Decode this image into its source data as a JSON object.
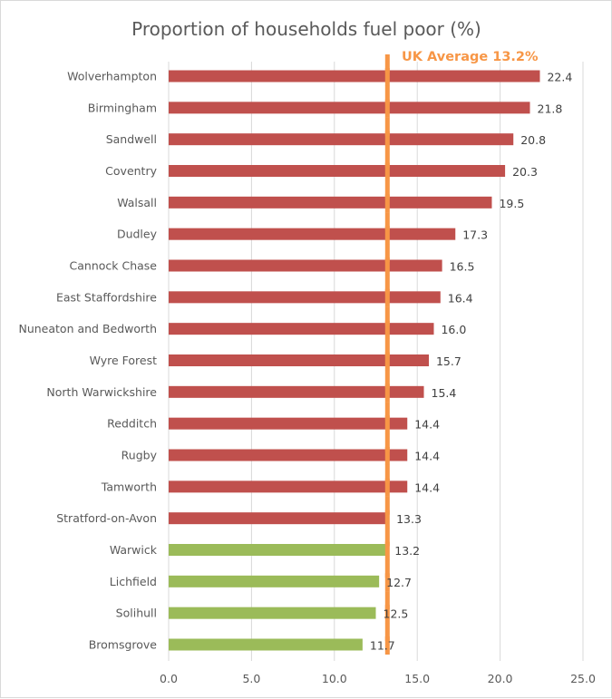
{
  "chart_data": {
    "type": "bar",
    "orientation": "horizontal",
    "title": "Proportion of households fuel poor (%)",
    "xlabel": "",
    "ylabel": "",
    "xlim": [
      0,
      25
    ],
    "xticks": [
      0,
      5,
      10,
      15,
      20,
      25
    ],
    "xtick_labels": [
      "0.0",
      "5.0",
      "10.0",
      "15.0",
      "20.0",
      "25.0"
    ],
    "grid": true,
    "legend": "none",
    "categories": [
      "Wolverhampton",
      "Birmingham",
      "Sandwell",
      "Coventry",
      "Walsall",
      "Dudley",
      "Cannock Chase",
      "East Staffordshire",
      "Nuneaton and Bedworth",
      "Wyre Forest",
      "North Warwickshire",
      "Redditch",
      "Rugby",
      "Tamworth",
      "Stratford-on-Avon",
      "Warwick",
      "Lichfield",
      "Solihull",
      "Bromsgrove"
    ],
    "values": [
      22.4,
      21.8,
      20.8,
      20.3,
      19.5,
      17.3,
      16.5,
      16.4,
      16.0,
      15.7,
      15.4,
      14.4,
      14.4,
      14.4,
      13.3,
      13.2,
      12.7,
      12.5,
      11.7
    ],
    "value_labels": [
      "22.4",
      "21.8",
      "20.8",
      "20.3",
      "19.5",
      "17.3",
      "16.5",
      "16.4",
      "16.0",
      "15.7",
      "15.4",
      "14.4",
      "14.4",
      "14.4",
      "13.3",
      "13.2",
      "12.7",
      "12.5",
      "11.7"
    ],
    "bar_groups": [
      "above",
      "above",
      "above",
      "above",
      "above",
      "above",
      "above",
      "above",
      "above",
      "above",
      "above",
      "above",
      "above",
      "above",
      "above",
      "below",
      "below",
      "below",
      "below"
    ],
    "colors": {
      "above": "#c0504d",
      "below": "#9bbb59",
      "reference": "#f79646",
      "grid": "#d9d9d9"
    },
    "reference_line": {
      "value": 13.2,
      "label": "UK Average 13.2%",
      "style": "dashed"
    }
  }
}
